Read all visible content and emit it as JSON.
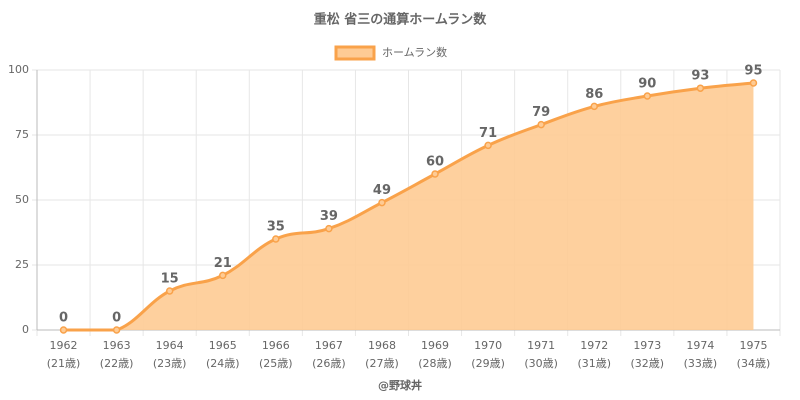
{
  "chart_data": {
    "type": "area",
    "title": "重松 省三の通算ホームラン数",
    "x_label": "@野球丼",
    "categories": [
      [
        "1962",
        "(21歳)"
      ],
      [
        "1963",
        "(22歳)"
      ],
      [
        "1964",
        "(23歳)"
      ],
      [
        "1965",
        "(24歳)"
      ],
      [
        "1966",
        "(25歳)"
      ],
      [
        "1967",
        "(26歳)"
      ],
      [
        "1968",
        "(27歳)"
      ],
      [
        "1969",
        "(28歳)"
      ],
      [
        "1970",
        "(29歳)"
      ],
      [
        "1971",
        "(30歳)"
      ],
      [
        "1972",
        "(31歳)"
      ],
      [
        "1973",
        "(32歳)"
      ],
      [
        "1974",
        "(33歳)"
      ],
      [
        "1975",
        "(34歳)"
      ]
    ],
    "series": [
      {
        "name": "ホームラン数",
        "color": "#f9a24a",
        "fill": "#fecb94",
        "values": [
          0,
          0,
          15,
          21,
          35,
          39,
          49,
          60,
          71,
          79,
          86,
          90,
          93,
          95
        ]
      }
    ],
    "ylim": [
      0,
      100
    ],
    "yticks": [
      0,
      25,
      50,
      75,
      100
    ],
    "grid": true,
    "legend": "top"
  }
}
